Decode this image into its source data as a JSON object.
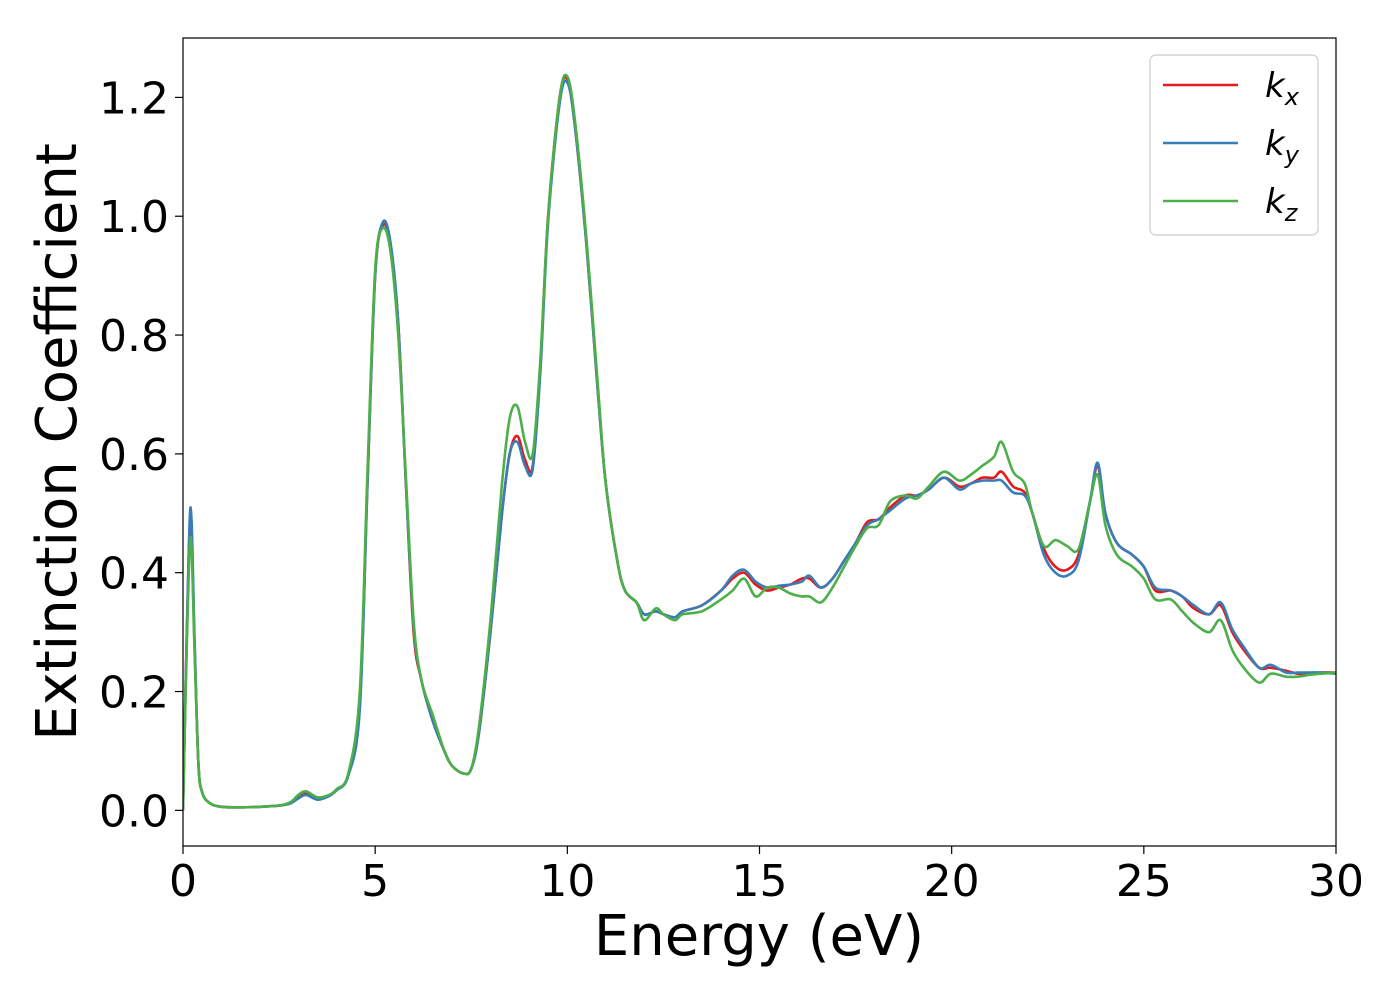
{
  "chart_data": {
    "type": "line",
    "xlabel": "Energy (eV)",
    "ylabel": "Extinction Coefficient",
    "xlim": [
      0,
      30
    ],
    "ylim": [
      -0.06,
      1.3
    ],
    "xticks": [
      0,
      5,
      10,
      15,
      20,
      25,
      30
    ],
    "xtick_labels": [
      "0",
      "5",
      "10",
      "15",
      "20",
      "25",
      "30"
    ],
    "yticks": [
      0.0,
      0.2,
      0.4,
      0.6,
      0.8,
      1.0,
      1.2
    ],
    "ytick_labels": [
      "0.0",
      "0.2",
      "0.4",
      "0.6",
      "0.8",
      "1.0",
      "1.2"
    ],
    "grid": false,
    "legend_position": "top-right",
    "x": [
      0,
      0.1,
      0.2,
      0.3,
      0.4,
      0.5,
      0.7,
      1.0,
      1.5,
      2.0,
      2.5,
      2.8,
      3.0,
      3.2,
      3.5,
      3.8,
      4.0,
      4.3,
      4.6,
      4.8,
      5.0,
      5.2,
      5.4,
      5.6,
      5.8,
      6.0,
      6.2,
      6.5,
      6.8,
      7.0,
      7.3,
      7.5,
      7.7,
      8.0,
      8.3,
      8.5,
      8.7,
      8.9,
      9.1,
      9.3,
      9.5,
      9.8,
      10.0,
      10.2,
      10.5,
      10.8,
      11.0,
      11.3,
      11.5,
      11.8,
      12.0,
      12.3,
      12.5,
      12.8,
      13.0,
      13.5,
      14.0,
      14.3,
      14.6,
      14.9,
      15.2,
      15.5,
      15.8,
      16.1,
      16.3,
      16.6,
      16.9,
      17.2,
      17.5,
      17.8,
      18.1,
      18.4,
      18.8,
      19.1,
      19.4,
      19.8,
      20.2,
      20.5,
      20.8,
      21.1,
      21.3,
      21.6,
      21.9,
      22.1,
      22.4,
      22.7,
      23.0,
      23.3,
      23.6,
      23.8,
      24.0,
      24.3,
      24.7,
      25.0,
      25.3,
      25.7,
      26.0,
      26.3,
      26.7,
      27.0,
      27.3,
      27.6,
      28.0,
      28.3,
      28.7,
      29.0,
      29.3,
      29.6,
      30.0
    ],
    "series": [
      {
        "name": "k_x",
        "label_base": "k",
        "label_sub": "x",
        "color": "#e41a1c",
        "values": [
          0.0,
          0.3,
          0.49,
          0.28,
          0.08,
          0.03,
          0.012,
          0.006,
          0.005,
          0.006,
          0.008,
          0.012,
          0.022,
          0.028,
          0.02,
          0.025,
          0.035,
          0.06,
          0.18,
          0.55,
          0.9,
          0.985,
          0.95,
          0.82,
          0.55,
          0.3,
          0.22,
          0.15,
          0.1,
          0.075,
          0.062,
          0.07,
          0.13,
          0.3,
          0.5,
          0.6,
          0.63,
          0.59,
          0.58,
          0.75,
          1.0,
          1.2,
          1.23,
          1.15,
          0.95,
          0.7,
          0.55,
          0.42,
          0.37,
          0.35,
          0.33,
          0.335,
          0.33,
          0.325,
          0.335,
          0.345,
          0.37,
          0.39,
          0.4,
          0.38,
          0.37,
          0.375,
          0.38,
          0.39,
          0.39,
          0.375,
          0.39,
          0.42,
          0.45,
          0.485,
          0.49,
          0.51,
          0.53,
          0.53,
          0.54,
          0.56,
          0.545,
          0.55,
          0.56,
          0.56,
          0.57,
          0.545,
          0.535,
          0.5,
          0.44,
          0.41,
          0.405,
          0.43,
          0.52,
          0.58,
          0.5,
          0.45,
          0.43,
          0.41,
          0.37,
          0.37,
          0.36,
          0.34,
          0.33,
          0.345,
          0.3,
          0.27,
          0.24,
          0.24,
          0.235,
          0.23,
          0.23,
          0.232,
          0.232
        ]
      },
      {
        "name": "k_y",
        "label_base": "k",
        "label_sub": "y",
        "color": "#377eb8",
        "values": [
          0.0,
          0.3,
          0.51,
          0.29,
          0.08,
          0.03,
          0.012,
          0.006,
          0.005,
          0.006,
          0.008,
          0.012,
          0.02,
          0.026,
          0.018,
          0.024,
          0.034,
          0.058,
          0.17,
          0.55,
          0.9,
          0.99,
          0.955,
          0.82,
          0.55,
          0.31,
          0.22,
          0.15,
          0.1,
          0.075,
          0.062,
          0.07,
          0.13,
          0.3,
          0.5,
          0.6,
          0.62,
          0.58,
          0.575,
          0.74,
          0.99,
          1.19,
          1.225,
          1.15,
          0.95,
          0.7,
          0.55,
          0.42,
          0.37,
          0.35,
          0.33,
          0.335,
          0.33,
          0.325,
          0.335,
          0.345,
          0.37,
          0.395,
          0.405,
          0.385,
          0.375,
          0.378,
          0.38,
          0.385,
          0.395,
          0.375,
          0.39,
          0.42,
          0.45,
          0.48,
          0.49,
          0.505,
          0.525,
          0.53,
          0.54,
          0.56,
          0.54,
          0.55,
          0.555,
          0.555,
          0.555,
          0.535,
          0.53,
          0.5,
          0.43,
          0.4,
          0.395,
          0.42,
          0.52,
          0.585,
          0.5,
          0.45,
          0.43,
          0.41,
          0.375,
          0.37,
          0.36,
          0.345,
          0.33,
          0.35,
          0.305,
          0.275,
          0.24,
          0.245,
          0.232,
          0.232,
          0.232,
          0.232,
          0.23
        ]
      },
      {
        "name": "k_z",
        "label_base": "k",
        "label_sub": "z",
        "color": "#4daf4a",
        "values": [
          0.0,
          0.28,
          0.46,
          0.27,
          0.08,
          0.03,
          0.012,
          0.006,
          0.005,
          0.006,
          0.008,
          0.014,
          0.026,
          0.032,
          0.022,
          0.026,
          0.036,
          0.062,
          0.2,
          0.57,
          0.91,
          0.98,
          0.94,
          0.8,
          0.56,
          0.32,
          0.22,
          0.16,
          0.1,
          0.075,
          0.062,
          0.07,
          0.14,
          0.32,
          0.55,
          0.66,
          0.68,
          0.62,
          0.6,
          0.76,
          1.0,
          1.2,
          1.235,
          1.16,
          0.96,
          0.71,
          0.55,
          0.42,
          0.37,
          0.35,
          0.32,
          0.34,
          0.33,
          0.32,
          0.33,
          0.335,
          0.355,
          0.37,
          0.39,
          0.36,
          0.375,
          0.375,
          0.365,
          0.36,
          0.36,
          0.35,
          0.375,
          0.41,
          0.445,
          0.475,
          0.48,
          0.52,
          0.53,
          0.525,
          0.545,
          0.57,
          0.555,
          0.565,
          0.58,
          0.595,
          0.62,
          0.57,
          0.55,
          0.5,
          0.445,
          0.455,
          0.445,
          0.44,
          0.52,
          0.565,
          0.48,
          0.43,
          0.41,
          0.39,
          0.355,
          0.355,
          0.335,
          0.315,
          0.3,
          0.32,
          0.27,
          0.24,
          0.215,
          0.23,
          0.225,
          0.225,
          0.228,
          0.23,
          0.232
        ]
      }
    ]
  }
}
